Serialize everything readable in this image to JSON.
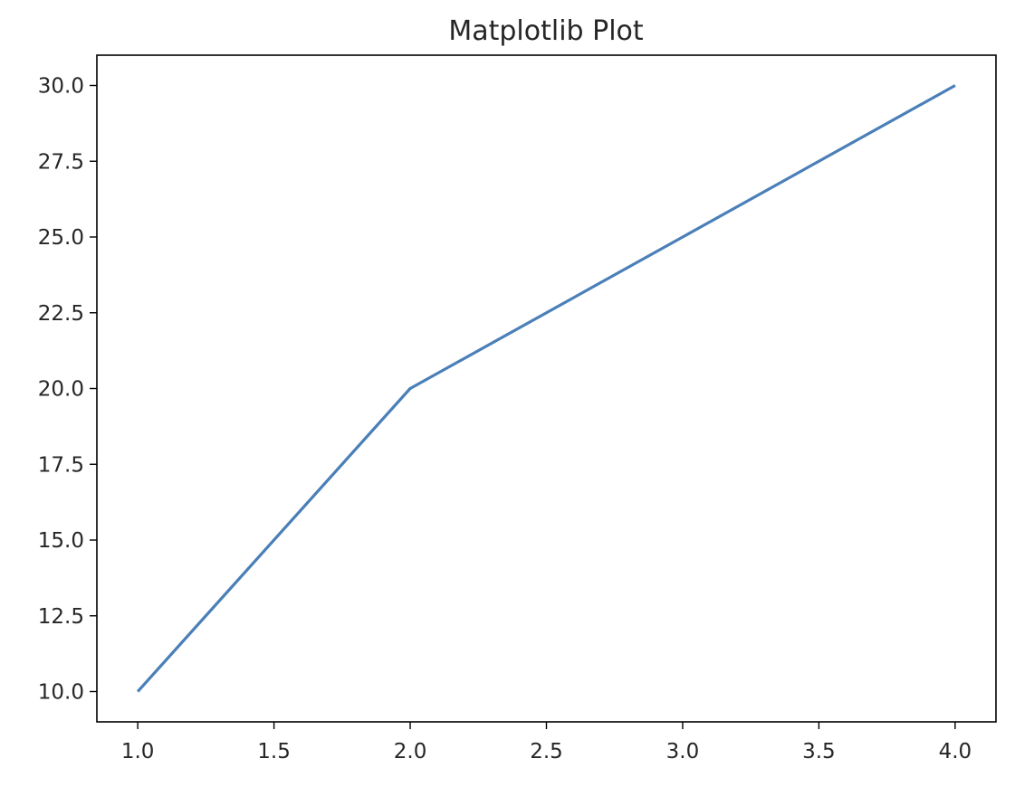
{
  "chart_data": {
    "type": "line",
    "title": "Matplotlib Plot",
    "xlabel": "",
    "ylabel": "",
    "x": [
      1.0,
      2.0,
      3.0,
      4.0
    ],
    "series": [
      {
        "values": [
          10,
          20,
          25,
          30
        ],
        "color": "#4a7fb8"
      }
    ],
    "xlim": [
      0.85,
      4.15
    ],
    "ylim": [
      9.0,
      31.0
    ],
    "xticks": [
      "1.0",
      "1.5",
      "2.0",
      "2.5",
      "3.0",
      "3.5",
      "4.0"
    ],
    "yticks": [
      "10.0",
      "12.5",
      "15.0",
      "17.5",
      "20.0",
      "22.5",
      "25.0",
      "27.5",
      "30.0"
    ],
    "grid": false,
    "legend": "none"
  }
}
